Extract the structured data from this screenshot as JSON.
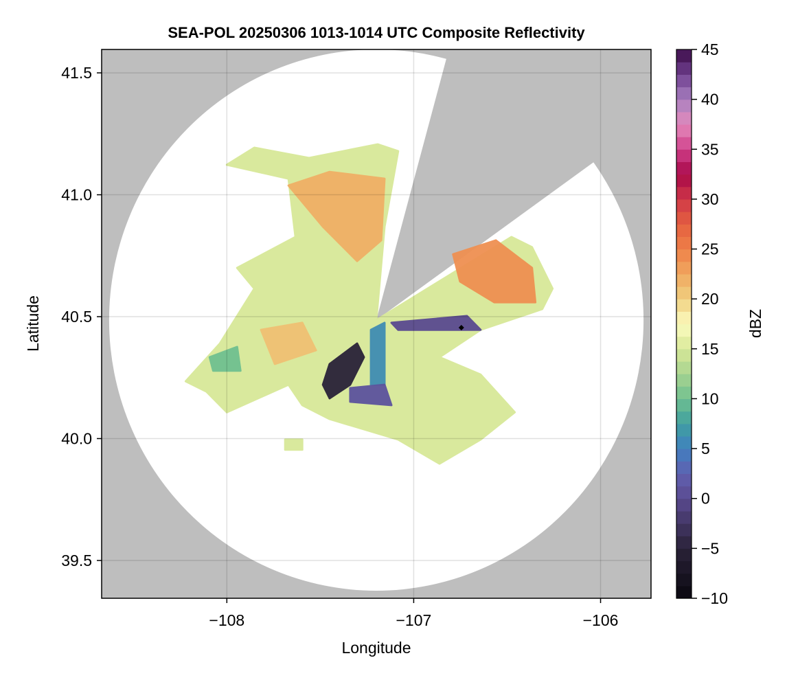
{
  "chart_data": {
    "type": "heatmap",
    "title": "SEA-POL 20250306 1013-1014 UTC Composite Reflectivity",
    "xlabel": "Longitude",
    "ylabel": "Latitude",
    "xlim": [
      -108.67,
      -105.73
    ],
    "ylim": [
      39.345,
      41.596
    ],
    "xticks": [
      -108,
      -107,
      -106
    ],
    "xtick_labels": [
      "−108",
      "−107",
      "−106"
    ],
    "yticks": [
      39.5,
      40.0,
      40.5,
      41.0,
      41.5
    ],
    "ytick_labels": [
      "39.5",
      "40.0",
      "40.5",
      "41.0",
      "41.5"
    ],
    "grid": true,
    "background_color": "#bebebe",
    "radar": {
      "center_lon": -107.2,
      "center_lat": 40.486,
      "range_lon_deg": 1.43,
      "range_lat_deg": 1.11,
      "blocked_azimuth_deg": [
        15,
        54
      ]
    },
    "marker": {
      "lon": -106.745,
      "lat": 40.455,
      "shape": "diamond"
    },
    "colorbar": {
      "label": "dBZ",
      "min": -10,
      "max": 45,
      "step": 1.25,
      "ticks": [
        -10,
        -5,
        0,
        5,
        10,
        15,
        20,
        25,
        30,
        35,
        40,
        45
      ],
      "tick_labels": [
        "−10",
        "−5",
        "0",
        "5",
        "10",
        "15",
        "20",
        "25",
        "30",
        "35",
        "40",
        "45"
      ],
      "anchors": [
        [
          -10,
          "#0a0810"
        ],
        [
          -5,
          "#2a2238"
        ],
        [
          0,
          "#5a4a90"
        ],
        [
          2.5,
          "#6060b0"
        ],
        [
          5,
          "#4080c0"
        ],
        [
          7.5,
          "#40a0a0"
        ],
        [
          10,
          "#70c090"
        ],
        [
          12.5,
          "#a8d490"
        ],
        [
          15,
          "#d8e898"
        ],
        [
          17.5,
          "#fcfcc0"
        ],
        [
          20,
          "#f0d080"
        ],
        [
          22.5,
          "#f0a860"
        ],
        [
          25,
          "#ee8048"
        ],
        [
          27.5,
          "#e46040"
        ],
        [
          30,
          "#d03848"
        ],
        [
          32.5,
          "#a80848"
        ],
        [
          35,
          "#d0408a"
        ],
        [
          37.5,
          "#e48abc"
        ],
        [
          40,
          "#a880c0"
        ],
        [
          42.5,
          "#704090"
        ],
        [
          45,
          "#3c0c48"
        ]
      ]
    },
    "echo_regions": [
      {
        "dbz": 15,
        "points": [
          [
            -108.22,
            40.235
          ],
          [
            -108.037,
            40.39
          ],
          [
            -107.853,
            40.615
          ],
          [
            -107.945,
            40.7
          ],
          [
            -107.633,
            40.827
          ],
          [
            -107.67,
            41.066
          ],
          [
            -108.0,
            41.123
          ],
          [
            -107.853,
            41.193
          ],
          [
            -107.56,
            41.151
          ],
          [
            -107.193,
            41.207
          ],
          [
            -107.083,
            41.179
          ],
          [
            -107.156,
            40.869
          ],
          [
            -107.2,
            40.486
          ],
          [
            -106.477,
            40.827
          ],
          [
            -106.367,
            40.785
          ],
          [
            -106.257,
            40.615
          ],
          [
            -106.312,
            40.531
          ],
          [
            -106.642,
            40.446
          ],
          [
            -106.862,
            40.334
          ],
          [
            -106.642,
            40.263
          ],
          [
            -106.459,
            40.108
          ],
          [
            -106.642,
            39.996
          ],
          [
            -106.862,
            39.897
          ],
          [
            -107.083,
            39.996
          ],
          [
            -107.45,
            40.08
          ],
          [
            -107.596,
            40.137
          ],
          [
            -107.67,
            40.221
          ],
          [
            -108.0,
            40.108
          ],
          [
            -108.11,
            40.193
          ]
        ]
      },
      {
        "dbz": 22,
        "points": [
          [
            -107.67,
            41.038
          ],
          [
            -107.45,
            41.094
          ],
          [
            -107.156,
            41.066
          ],
          [
            -107.174,
            40.813
          ],
          [
            -107.303,
            40.728
          ],
          [
            -107.486,
            40.869
          ]
        ]
      },
      {
        "dbz": 24,
        "points": [
          [
            -106.789,
            40.756
          ],
          [
            -106.56,
            40.813
          ],
          [
            -106.367,
            40.7
          ],
          [
            -106.349,
            40.559
          ],
          [
            -106.569,
            40.559
          ],
          [
            -106.752,
            40.644
          ]
        ]
      },
      {
        "dbz": 21,
        "points": [
          [
            -107.817,
            40.446
          ],
          [
            -107.596,
            40.475
          ],
          [
            -107.523,
            40.362
          ],
          [
            -107.743,
            40.306
          ]
        ]
      },
      {
        "dbz": 10,
        "points": [
          [
            -108.092,
            40.334
          ],
          [
            -107.945,
            40.376
          ],
          [
            -107.927,
            40.278
          ],
          [
            -108.073,
            40.278
          ]
        ]
      },
      {
        "dbz": 6,
        "points": [
          [
            -107.229,
            40.446
          ],
          [
            -107.156,
            40.475
          ],
          [
            -107.156,
            40.221
          ],
          [
            -107.229,
            40.221
          ]
        ]
      },
      {
        "dbz": 0,
        "points": [
          [
            -107.119,
            40.475
          ],
          [
            -106.715,
            40.503
          ],
          [
            -106.642,
            40.446
          ],
          [
            -107.083,
            40.446
          ]
        ]
      },
      {
        "dbz": 1,
        "points": [
          [
            -107.34,
            40.207
          ],
          [
            -107.156,
            40.221
          ],
          [
            -107.119,
            40.137
          ],
          [
            -107.34,
            40.151
          ]
        ]
      },
      {
        "dbz": -5,
        "points": [
          [
            -107.45,
            40.306
          ],
          [
            -107.303,
            40.39
          ],
          [
            -107.266,
            40.334
          ],
          [
            -107.34,
            40.221
          ],
          [
            -107.45,
            40.165
          ],
          [
            -107.486,
            40.221
          ]
        ]
      },
      {
        "dbz": 15,
        "points": [
          [
            -107.688,
            39.996
          ],
          [
            -107.596,
            39.996
          ],
          [
            -107.596,
            39.954
          ],
          [
            -107.688,
            39.954
          ]
        ]
      }
    ]
  }
}
